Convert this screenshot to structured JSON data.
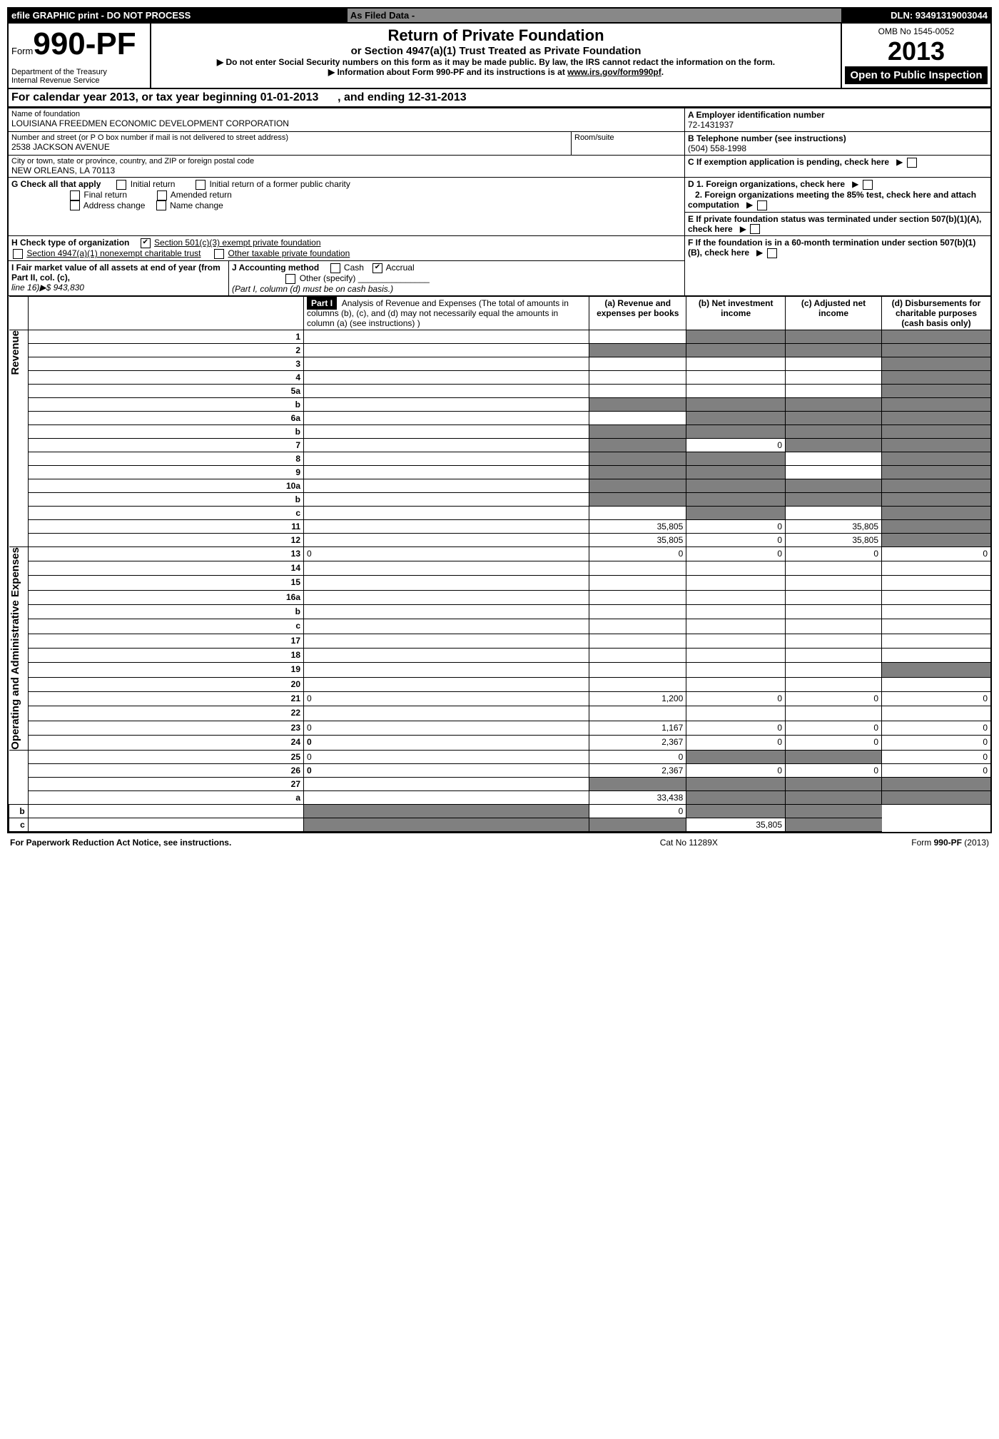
{
  "efile": {
    "left": "efile GRAPHIC print - DO NOT PROCESS",
    "mid": "As Filed Data -",
    "dln": "DLN: 93491319003044"
  },
  "header": {
    "form_label": "Form",
    "form_num": "990-PF",
    "dept1": "Department of the Treasury",
    "dept2": "Internal Revenue Service",
    "title": "Return of Private Foundation",
    "subtitle": "or Section 4947(a)(1) Trust Treated as Private Foundation",
    "instr1": "Do not enter Social Security numbers on this form as it may be made public. By law, the IRS cannot redact the information on the form.",
    "instr2_a": "Information about Form 990-PF and its instructions is at ",
    "instr2_link": "www.irs.gov/form990pf",
    "instr2_b": ".",
    "omb": "OMB No 1545-0052",
    "year": "2013",
    "open": "Open to Public Inspection"
  },
  "cal": {
    "a": "For calendar year 2013, or tax year beginning 01-01-2013",
    "b": ", and ending 12-31-2013"
  },
  "info": {
    "name_lbl": "Name of foundation",
    "name_val": "LOUISIANA FREEDMEN ECONOMIC DEVELOPMENT CORPORATION",
    "addr_lbl": "Number and street (or P O box number if mail is not delivered to street address)",
    "addr_val": "2538 JACKSON AVENUE",
    "room_lbl": "Room/suite",
    "city_lbl": "City or town, state or province, country, and ZIP or foreign postal code",
    "city_val": "NEW ORLEANS, LA  70113",
    "A_lbl": "A Employer identification number",
    "A_val": "72-1431937",
    "B_lbl": "B Telephone number (see instructions)",
    "B_val": "(504) 558-1998",
    "C_lbl": "C If exemption application is pending, check here",
    "G_lbl": "G Check all that apply",
    "G_initial": "Initial return",
    "G_initial_former": "Initial return of a former public charity",
    "G_final": "Final return",
    "G_amended": "Amended return",
    "G_addr_change": "Address change",
    "G_name_change": "Name change",
    "D1": "D 1. Foreign organizations, check here",
    "D2": "2. Foreign organizations meeting the 85% test, check here and attach computation",
    "E": "E If private foundation status was terminated under section 507(b)(1)(A), check here",
    "H_lbl": "H Check type of organization",
    "H_501c3": "Section 501(c)(3) exempt private foundation",
    "H_4947": "Section 4947(a)(1) nonexempt charitable trust",
    "H_other": "Other taxable private foundation",
    "I_lbl": "I Fair market value of all assets at end of year (from Part II, col. (c),",
    "I_line": "line 16)▶$  943,830",
    "J_lbl": "J Accounting method",
    "J_cash": "Cash",
    "J_accrual": "Accrual",
    "J_other": "Other (specify)",
    "J_note": "(Part I, column (d) must be on cash basis.)",
    "F": "F If the foundation is in a 60-month termination under section 507(b)(1)(B), check here"
  },
  "part1": {
    "part_lbl": "Part I",
    "hdr_desc": "Analysis of Revenue and Expenses (The total of amounts in columns (b), (c), and (d) may not necessarily equal the amounts in column (a) (see instructions) )",
    "col_a": "(a) Revenue and expenses per books",
    "col_b": "(b) Net investment income",
    "col_c": "(c) Adjusted net income",
    "col_d": "(d) Disbursements for charitable purposes (cash basis only)",
    "sec_rev": "Revenue",
    "sec_exp": "Operating and Administrative Expenses",
    "rows": [
      {
        "n": "1",
        "d": "",
        "a": "",
        "b": "",
        "c": "",
        "b_gray": true,
        "c_gray": true,
        "d_gray": true
      },
      {
        "n": "2",
        "d": "",
        "a": "",
        "b": "",
        "c": "",
        "a_gray": true,
        "b_gray": true,
        "c_gray": true,
        "d_gray": true
      },
      {
        "n": "3",
        "d": "",
        "a": "",
        "b": "",
        "c": "",
        "d_gray": true
      },
      {
        "n": "4",
        "d": "",
        "a": "",
        "b": "",
        "c": "",
        "d_gray": true
      },
      {
        "n": "5a",
        "d": "",
        "a": "",
        "b": "",
        "c": "",
        "d_gray": true
      },
      {
        "n": "b",
        "d": "",
        "a": "",
        "b": "",
        "c": "",
        "a_gray": true,
        "b_gray": true,
        "c_gray": true,
        "d_gray": true
      },
      {
        "n": "6a",
        "d": "",
        "a": "",
        "b": "",
        "c": "",
        "b_gray": true,
        "c_gray": true,
        "d_gray": true
      },
      {
        "n": "b",
        "d": "",
        "a": "",
        "b": "",
        "c": "",
        "a_gray": true,
        "b_gray": true,
        "c_gray": true,
        "d_gray": true
      },
      {
        "n": "7",
        "d": "",
        "a": "",
        "b": "0",
        "c": "",
        "a_gray": true,
        "c_gray": true,
        "d_gray": true
      },
      {
        "n": "8",
        "d": "",
        "a": "",
        "b": "",
        "c": "",
        "a_gray": true,
        "b_gray": true,
        "d_gray": true
      },
      {
        "n": "9",
        "d": "",
        "a": "",
        "b": "",
        "c": "",
        "a_gray": true,
        "b_gray": true,
        "d_gray": true
      },
      {
        "n": "10a",
        "d": "",
        "a": "",
        "b": "",
        "c": "",
        "a_gray": true,
        "b_gray": true,
        "c_gray": true,
        "d_gray": true
      },
      {
        "n": "b",
        "d": "",
        "a": "",
        "b": "",
        "c": "",
        "a_gray": true,
        "b_gray": true,
        "c_gray": true,
        "d_gray": true
      },
      {
        "n": "c",
        "d": "",
        "a": "",
        "b": "",
        "c": "",
        "b_gray": true,
        "d_gray": true
      },
      {
        "n": "11",
        "d": "",
        "a": "35,805",
        "b": "0",
        "c": "35,805",
        "d_gray": true
      },
      {
        "n": "12",
        "d": "",
        "bold": true,
        "a": "35,805",
        "b": "0",
        "c": "35,805",
        "d_gray": true
      },
      {
        "n": "13",
        "d": "0",
        "a": "0",
        "b": "0",
        "c": "0"
      },
      {
        "n": "14",
        "d": "",
        "a": "",
        "b": "",
        "c": ""
      },
      {
        "n": "15",
        "d": "",
        "a": "",
        "b": "",
        "c": ""
      },
      {
        "n": "16a",
        "d": "",
        "a": "",
        "b": "",
        "c": ""
      },
      {
        "n": "b",
        "d": "",
        "a": "",
        "b": "",
        "c": ""
      },
      {
        "n": "c",
        "d": "",
        "a": "",
        "b": "",
        "c": ""
      },
      {
        "n": "17",
        "d": "",
        "a": "",
        "b": "",
        "c": ""
      },
      {
        "n": "18",
        "d": "",
        "a": "",
        "b": "",
        "c": ""
      },
      {
        "n": "19",
        "d": "",
        "a": "",
        "b": "",
        "c": "",
        "d_gray": true
      },
      {
        "n": "20",
        "d": "",
        "a": "",
        "b": "",
        "c": ""
      },
      {
        "n": "21",
        "d": "0",
        "a": "1,200",
        "b": "0",
        "c": "0"
      },
      {
        "n": "22",
        "d": "",
        "a": "",
        "b": "",
        "c": ""
      },
      {
        "n": "23",
        "d": "0",
        "a": "1,167",
        "b": "0",
        "c": "0"
      },
      {
        "n": "24",
        "d": "0",
        "bold": true,
        "a": "2,367",
        "b": "0",
        "c": "0"
      },
      {
        "n": "25",
        "d": "0",
        "a": "0",
        "b": "",
        "c": "",
        "b_gray": true,
        "c_gray": true
      },
      {
        "n": "26",
        "d": "0",
        "bold": true,
        "a": "2,367",
        "b": "0",
        "c": "0"
      },
      {
        "n": "27",
        "d": "",
        "a": "",
        "b": "",
        "c": "",
        "a_gray": true,
        "b_gray": true,
        "c_gray": true,
        "d_gray": true
      },
      {
        "n": "a",
        "d": "",
        "bold": true,
        "a": "33,438",
        "b": "",
        "c": "",
        "b_gray": true,
        "c_gray": true,
        "d_gray": true
      },
      {
        "n": "b",
        "d": "",
        "bold": true,
        "a": "",
        "b": "0",
        "c": "",
        "a_gray": true,
        "c_gray": true,
        "d_gray": true
      },
      {
        "n": "c",
        "d": "",
        "bold": true,
        "a": "",
        "b": "",
        "c": "35,805",
        "a_gray": true,
        "b_gray": true,
        "d_gray": true
      }
    ]
  },
  "footer": {
    "left": "For Paperwork Reduction Act Notice, see instructions.",
    "mid": "Cat No 11289X",
    "right_a": "Form ",
    "right_b": "990-PF",
    "right_c": " (2013)"
  }
}
